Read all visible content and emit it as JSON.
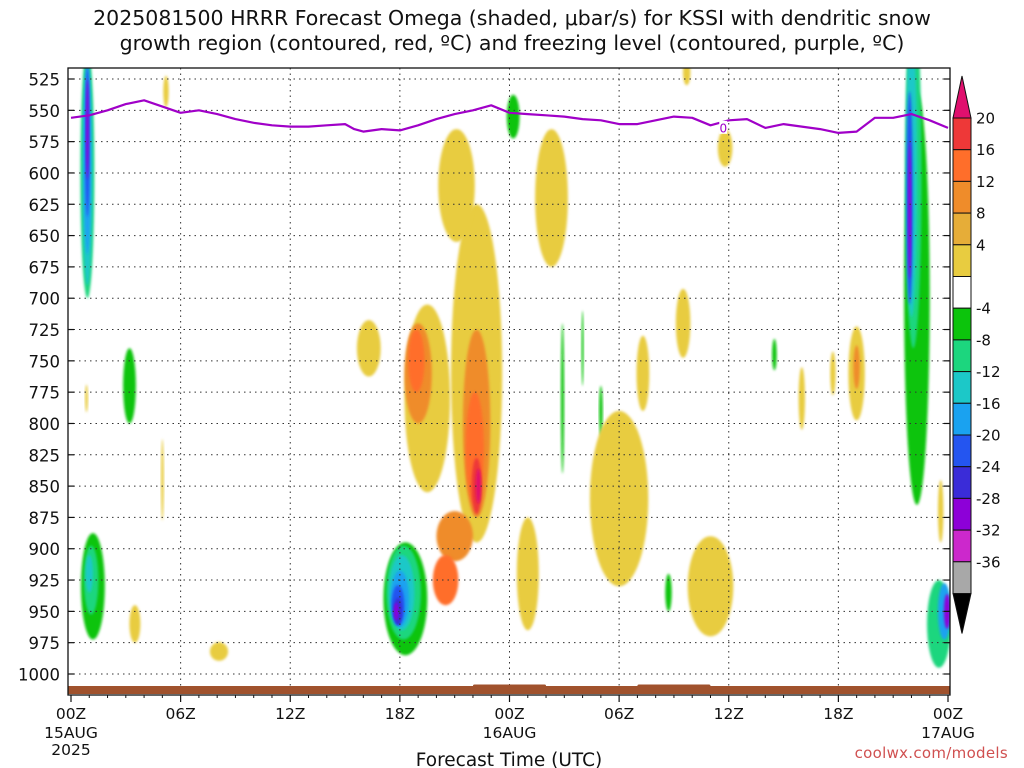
{
  "chart_data": {
    "type": "heatmap",
    "title": [
      "2025081500 HRRR Forecast Omega (shaded, μbar/s) for KSSI with dendritic snow",
      "growth region (contoured, red, ºC) and freezing level (contoured, purple, ºC)"
    ],
    "xlabel": "Forecast Time (UTC)",
    "ylabel": "",
    "x_range_hours": [
      0,
      48
    ],
    "y_range_hPa": [
      515,
      1010
    ],
    "y_scale": "linear-inverted",
    "grid": "dotted",
    "yticks": [
      "525",
      "550",
      "575",
      "600",
      "625",
      "650",
      "675",
      "700",
      "725",
      "750",
      "775",
      "800",
      "825",
      "850",
      "875",
      "900",
      "925",
      "950",
      "975",
      "1000"
    ],
    "xticks": [
      {
        "hour": 0,
        "label": "00Z",
        "sub": [
          "15AUG",
          "2025"
        ]
      },
      {
        "hour": 6,
        "label": "06Z",
        "sub": []
      },
      {
        "hour": 12,
        "label": "12Z",
        "sub": []
      },
      {
        "hour": 18,
        "label": "18Z",
        "sub": []
      },
      {
        "hour": 24,
        "label": "00Z",
        "sub": [
          "16AUG"
        ]
      },
      {
        "hour": 30,
        "label": "06Z",
        "sub": []
      },
      {
        "hour": 36,
        "label": "12Z",
        "sub": []
      },
      {
        "hour": 42,
        "label": "18Z",
        "sub": []
      },
      {
        "hour": 48,
        "label": "00Z",
        "sub": [
          "17AUG"
        ]
      }
    ],
    "colorbar": {
      "labels": [
        "20",
        "16",
        "12",
        "8",
        "4",
        "-4",
        "-8",
        "-12",
        "-16",
        "-20",
        "-24",
        "-28",
        "-32",
        "-36"
      ],
      "colors": [
        "#e0106e",
        "#ee3838",
        "#ff6e2a",
        "#ef8c2a",
        "#e6ad38",
        "#e8cc40",
        "#ffffff",
        "#0cc40c",
        "#1cd67e",
        "#1cc8c8",
        "#1aa2f0",
        "#2455f0",
        "#3a2cd8",
        "#8d00d8",
        "#cc28cc",
        "#a8a8a8",
        "#000000"
      ]
    },
    "freezing_level": {
      "label": "0",
      "color": "#a000c8",
      "hours": [
        0,
        1,
        2,
        3,
        4,
        5,
        6,
        7,
        8,
        9,
        10,
        11,
        12,
        13,
        14,
        15,
        15.5,
        16,
        17,
        18,
        19,
        20,
        21,
        22,
        23,
        24,
        25,
        26,
        27,
        28,
        29,
        30,
        31,
        32,
        33,
        34,
        35,
        36,
        37,
        38,
        39,
        40,
        41,
        42,
        43,
        44,
        45,
        46,
        47,
        48
      ],
      "pressure_hPa": [
        556,
        554,
        550,
        545,
        542,
        547,
        552,
        550,
        553,
        557,
        560,
        562,
        563,
        563,
        562,
        561,
        565,
        567,
        565,
        566,
        562,
        557,
        553,
        550,
        546,
        552,
        553,
        554,
        555,
        557,
        558,
        561,
        561,
        558,
        555,
        556,
        562,
        558,
        557,
        564,
        561,
        563,
        565,
        568,
        567,
        556,
        556,
        553,
        558,
        564
      ]
    },
    "omega_features": [
      {
        "hour": 0.9,
        "p": 600,
        "w": 0.75,
        "h": 200,
        "value": -8
      },
      {
        "hour": 0.9,
        "p": 600,
        "w": 0.55,
        "h": 180,
        "value": -12
      },
      {
        "hour": 0.9,
        "p": 590,
        "w": 0.4,
        "h": 150,
        "value": -16
      },
      {
        "hour": 0.9,
        "p": 575,
        "w": 0.25,
        "h": 120,
        "value": -20
      },
      {
        "hour": 0.9,
        "p": 565,
        "w": 0.15,
        "h": 80,
        "value": -28
      },
      {
        "hour": 1.2,
        "p": 930,
        "w": 1.3,
        "h": 85,
        "value": -4
      },
      {
        "hour": 1.1,
        "p": 925,
        "w": 0.8,
        "h": 55,
        "value": -8
      },
      {
        "hour": 1.0,
        "p": 920,
        "w": 0.4,
        "h": 30,
        "value": -12
      },
      {
        "hour": 0.85,
        "p": 780,
        "w": 0.15,
        "h": 22,
        "value": 4
      },
      {
        "hour": 3.2,
        "p": 770,
        "w": 0.7,
        "h": 60,
        "value": -4
      },
      {
        "hour": 3.5,
        "p": 960,
        "w": 0.6,
        "h": 30,
        "value": 4
      },
      {
        "hour": 5.0,
        "p": 845,
        "w": 0.15,
        "h": 65,
        "value": 4
      },
      {
        "hour": 8.1,
        "p": 982,
        "w": 1.0,
        "h": 15,
        "value": 4
      },
      {
        "hour": 5.2,
        "p": 535,
        "w": 0.3,
        "h": 25,
        "value": 4
      },
      {
        "hour": 18.3,
        "p": 940,
        "w": 2.4,
        "h": 90,
        "value": -4
      },
      {
        "hour": 18.2,
        "p": 935,
        "w": 1.9,
        "h": 75,
        "value": -8
      },
      {
        "hour": 18.1,
        "p": 935,
        "w": 1.4,
        "h": 60,
        "value": -12
      },
      {
        "hour": 18.0,
        "p": 940,
        "w": 1.0,
        "h": 45,
        "value": -16
      },
      {
        "hour": 17.9,
        "p": 945,
        "w": 0.7,
        "h": 32,
        "value": -20
      },
      {
        "hour": 17.9,
        "p": 950,
        "w": 0.45,
        "h": 22,
        "value": -24
      },
      {
        "hour": 17.8,
        "p": 950,
        "w": 0.25,
        "h": 14,
        "value": -28
      },
      {
        "hour": 16.3,
        "p": 740,
        "w": 1.3,
        "h": 45,
        "value": 4
      },
      {
        "hour": 19.5,
        "p": 780,
        "w": 2.5,
        "h": 150,
        "value": 4
      },
      {
        "hour": 19.0,
        "p": 760,
        "w": 1.5,
        "h": 80,
        "value": 8
      },
      {
        "hour": 18.9,
        "p": 750,
        "w": 0.9,
        "h": 50,
        "value": 12
      },
      {
        "hour": 22.2,
        "p": 760,
        "w": 2.8,
        "h": 270,
        "value": 4
      },
      {
        "hour": 22.2,
        "p": 800,
        "w": 1.5,
        "h": 150,
        "value": 8
      },
      {
        "hour": 22.1,
        "p": 820,
        "w": 1.0,
        "h": 90,
        "value": 12
      },
      {
        "hour": 22.2,
        "p": 850,
        "w": 0.55,
        "h": 45,
        "value": 16
      },
      {
        "hour": 22.3,
        "p": 850,
        "w": 0.28,
        "h": 28,
        "value": 20
      },
      {
        "hour": 21.0,
        "p": 890,
        "w": 2.0,
        "h": 40,
        "value": 8
      },
      {
        "hour": 20.5,
        "p": 925,
        "w": 1.4,
        "h": 40,
        "value": 12
      },
      {
        "hour": 21.1,
        "p": 610,
        "w": 2.0,
        "h": 90,
        "value": 4
      },
      {
        "hour": 24.2,
        "p": 555,
        "w": 0.7,
        "h": 35,
        "value": -4
      },
      {
        "hour": 26.3,
        "p": 620,
        "w": 1.8,
        "h": 110,
        "value": 4
      },
      {
        "hour": 25.0,
        "p": 920,
        "w": 1.2,
        "h": 90,
        "value": 4
      },
      {
        "hour": 26.9,
        "p": 780,
        "w": 0.18,
        "h": 120,
        "value": -4
      },
      {
        "hour": 28.0,
        "p": 740,
        "w": 0.12,
        "h": 60,
        "value": -4
      },
      {
        "hour": 29.0,
        "p": 790,
        "w": 0.2,
        "h": 40,
        "value": -4
      },
      {
        "hour": 30.0,
        "p": 860,
        "w": 3.2,
        "h": 140,
        "value": 4
      },
      {
        "hour": 31.3,
        "p": 760,
        "w": 0.7,
        "h": 60,
        "value": 4
      },
      {
        "hour": 33.5,
        "p": 720,
        "w": 0.8,
        "h": 55,
        "value": 4
      },
      {
        "hour": 32.7,
        "p": 935,
        "w": 0.35,
        "h": 30,
        "value": -4
      },
      {
        "hour": 35.0,
        "p": 930,
        "w": 2.5,
        "h": 80,
        "value": 4
      },
      {
        "hour": 35.8,
        "p": 580,
        "w": 0.8,
        "h": 30,
        "value": 4
      },
      {
        "hour": 33.7,
        "p": 520,
        "w": 0.4,
        "h": 20,
        "value": 4
      },
      {
        "hour": 38.5,
        "p": 745,
        "w": 0.25,
        "h": 25,
        "value": -4
      },
      {
        "hour": 40.0,
        "p": 780,
        "w": 0.35,
        "h": 50,
        "value": 4
      },
      {
        "hour": 41.7,
        "p": 760,
        "w": 0.3,
        "h": 35,
        "value": 4
      },
      {
        "hour": 43.0,
        "p": 760,
        "w": 0.9,
        "h": 75,
        "value": 4
      },
      {
        "hour": 43.0,
        "p": 755,
        "w": 0.35,
        "h": 35,
        "value": 8
      },
      {
        "hour": 46.3,
        "p": 700,
        "w": 1.4,
        "h": 330,
        "value": -4
      },
      {
        "hour": 46.1,
        "p": 600,
        "w": 0.9,
        "h": 280,
        "value": -8
      },
      {
        "hour": 46.0,
        "p": 600,
        "w": 0.6,
        "h": 230,
        "value": -12
      },
      {
        "hour": 45.9,
        "p": 620,
        "w": 0.35,
        "h": 170,
        "value": -20
      },
      {
        "hour": 45.9,
        "p": 630,
        "w": 0.18,
        "h": 110,
        "value": -28
      },
      {
        "hour": 47.5,
        "p": 960,
        "w": 1.3,
        "h": 70,
        "value": -8
      },
      {
        "hour": 47.8,
        "p": 950,
        "w": 0.7,
        "h": 45,
        "value": -16
      },
      {
        "hour": 47.95,
        "p": 950,
        "w": 0.35,
        "h": 28,
        "value": -28
      },
      {
        "hour": 47.6,
        "p": 870,
        "w": 0.3,
        "h": 50,
        "value": 4
      }
    ],
    "terrain_color": "#a0522d"
  },
  "credit": "coolwx.com/models"
}
